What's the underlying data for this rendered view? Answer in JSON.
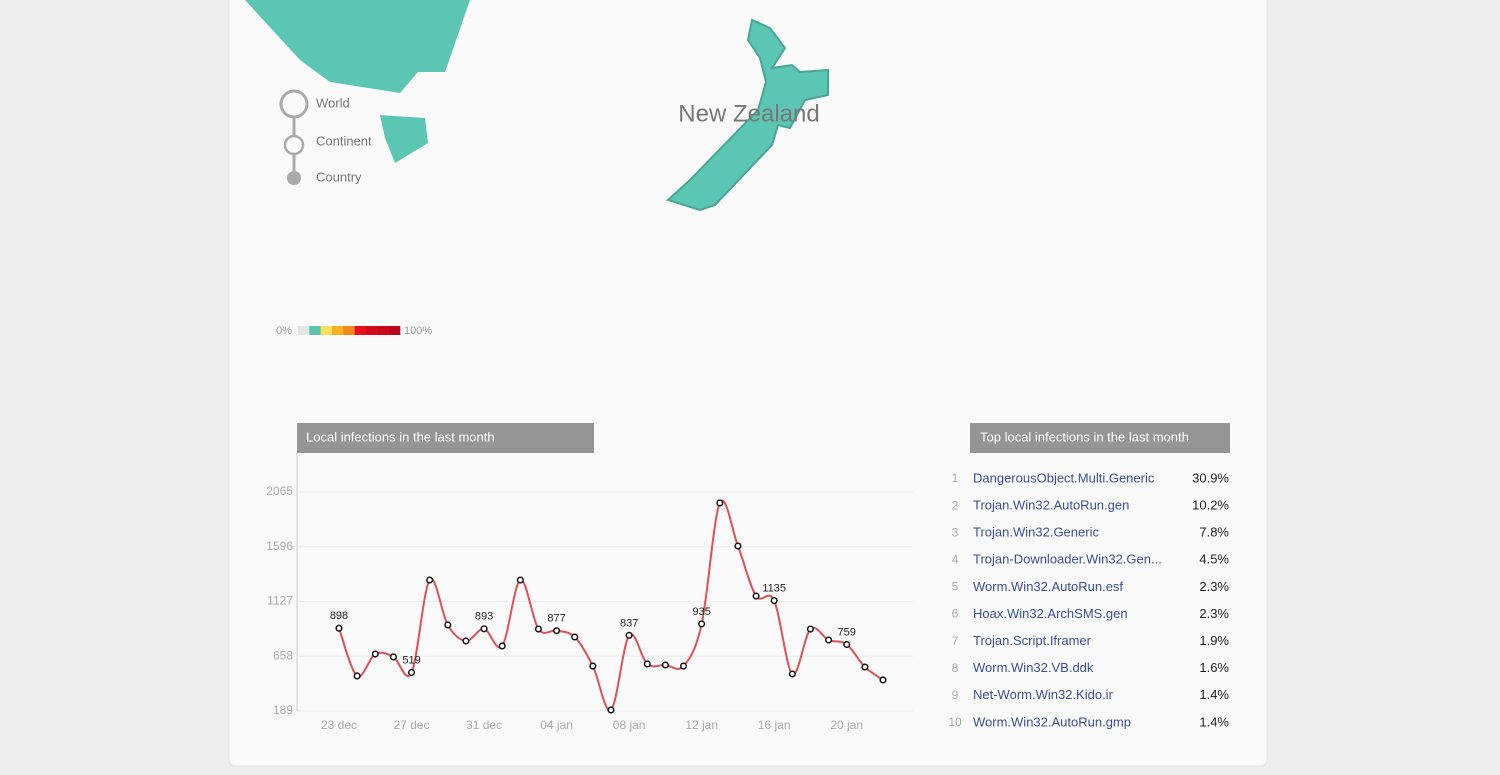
{
  "map": {
    "country": "New Zealand",
    "levels": [
      "World",
      "Continent",
      "Country"
    ],
    "legend": {
      "min_label": "0%",
      "max_label": "100%",
      "colors": [
        "#e3e6e8",
        "#5bc5b5",
        "#f5e25a",
        "#f5b324",
        "#f08a1a",
        "#e8101e",
        "#d30a1c",
        "#c70a1a",
        "#b8081a"
      ]
    }
  },
  "chart_data": {
    "type": "line",
    "title": "Local infections in the last month",
    "categories": [
      "23 dec",
      null,
      null,
      null,
      "27 dec",
      null,
      null,
      null,
      "31 dec",
      null,
      null,
      null,
      "04 jan",
      null,
      null,
      null,
      "08 jan",
      null,
      null,
      null,
      "12 jan",
      null,
      null,
      null,
      "16 jan",
      null,
      null,
      null,
      "20 jan",
      null,
      null
    ],
    "series": [
      {
        "name": "Local infections",
        "color": "#e0505a",
        "values": [
          898,
          489,
          677,
          652,
          519,
          1311,
          926,
          789,
          893,
          746,
          1311,
          891,
          877,
          823,
          574,
          198,
          837,
          592,
          583,
          574,
          935,
          1971,
          1602,
          1174,
          1135,
          506,
          891,
          797,
          759,
          566,
          455
        ],
        "value_labels": [
          "898",
          null,
          null,
          null,
          "519",
          null,
          null,
          null,
          "893",
          null,
          null,
          null,
          "877",
          null,
          null,
          null,
          "837",
          null,
          null,
          null,
          "935",
          null,
          null,
          null,
          "1135",
          null,
          null,
          null,
          "759",
          null,
          null
        ]
      }
    ],
    "ylim": [
      189,
      2065
    ],
    "yticks": [
      189,
      658,
      1127,
      1596,
      2065
    ],
    "grid": true
  },
  "top_list": {
    "title": "Top local infections in the last month",
    "rows": [
      [
        "1",
        "DangerousObject.Multi.Generic",
        "30.9%"
      ],
      [
        "2",
        "Trojan.Win32.AutoRun.gen",
        "10.2%"
      ],
      [
        "3",
        "Trojan.Win32.Generic",
        "7.8%"
      ],
      [
        "4",
        "Trojan-Downloader.Win32.Gen...",
        "4.5%"
      ],
      [
        "5",
        "Worm.Win32.AutoRun.esf",
        "2.3%"
      ],
      [
        "6",
        "Hoax.Win32.ArchSMS.gen",
        "2.3%"
      ],
      [
        "7",
        "Trojan.Script.Iframer",
        "1.9%"
      ],
      [
        "8",
        "Worm.Win32.VB.ddk",
        "1.6%"
      ],
      [
        "9",
        "Net-Worm.Win32.Kido.ir",
        "1.4%"
      ],
      [
        "10",
        "Worm.Win32.AutoRun.gmp",
        "1.4%"
      ]
    ]
  }
}
